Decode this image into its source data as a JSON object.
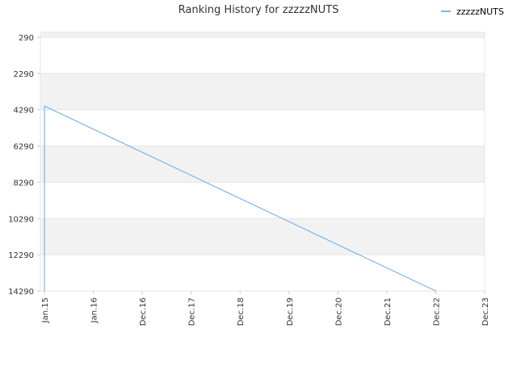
{
  "chart_data": {
    "type": "line",
    "title": "Ranking History for zzzzzNUTS",
    "xlabel": "",
    "ylabel": "",
    "x_tick_labels": [
      "Jan.15",
      "Jan.16",
      "Dec.16",
      "Dec.17",
      "Dec.18",
      "Dec.19",
      "Dec.20",
      "Dec.21",
      "Dec.22",
      "Dec.23"
    ],
    "y_tick_labels": [
      "290",
      "2290",
      "4290",
      "6290",
      "8290",
      "10290",
      "12290",
      "14290"
    ],
    "ylim": [
      290,
      14290
    ],
    "y_inverted": true,
    "grid": true,
    "legend_position": "top-right",
    "colors": {
      "line": "#7cb5ec",
      "band": "#f2f2f2",
      "grid": "#e6e6e6"
    },
    "series": [
      {
        "name": "zzzzzNUTS",
        "points": [
          {
            "x": "Jan.15",
            "y": 14290
          },
          {
            "x": "Jan.15",
            "y": 4090
          },
          {
            "x": "Dec.22",
            "y": 14290
          }
        ]
      }
    ]
  }
}
